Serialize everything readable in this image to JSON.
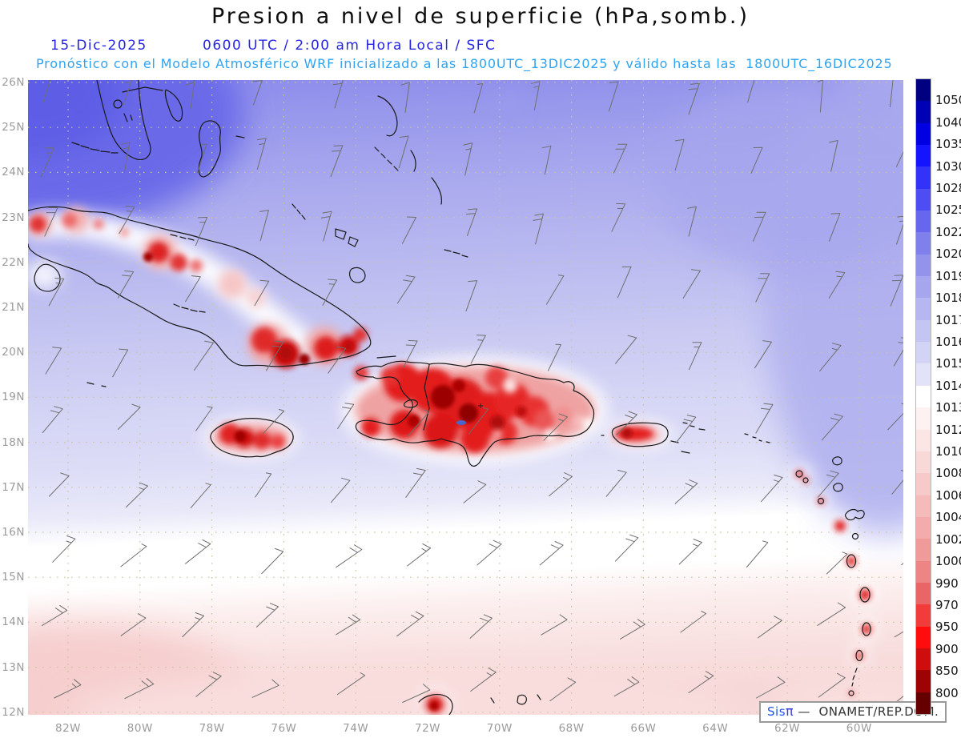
{
  "title": "Presion a nivel de superficie (hPa,somb.)",
  "header": {
    "date": "15-Dic-2025",
    "time_line": "0600 UTC / 2:00 am Hora Local / SFC",
    "forecast_line": "Pronóstico con el Modelo Atmosférico WRF inicializado a las 1800UTC_13DIC2025 y válido hasta las  1800UTC_16DIC2025"
  },
  "map": {
    "lat_labels": [
      "26N",
      "25N",
      "24N",
      "23N",
      "22N",
      "21N",
      "20N",
      "19N",
      "18N",
      "17N",
      "16N",
      "15N",
      "14N",
      "13N",
      "12N"
    ],
    "lon_labels": [
      "82W",
      "80W",
      "78W",
      "76W",
      "74W",
      "72W",
      "70W",
      "68W",
      "66W",
      "64W",
      "62W",
      "60W"
    ]
  },
  "colorbar": {
    "unit": "hPa",
    "tick_labels": [
      "1050",
      "1040",
      "1035",
      "1030",
      "1028",
      "1025",
      "1022",
      "1020",
      "1019",
      "1018",
      "1017",
      "1016",
      "1015",
      "1014",
      "1013",
      "1012",
      "1010",
      "1008",
      "1006",
      "1004",
      "1002",
      "1000",
      "990",
      "970",
      "950",
      "900",
      "850",
      "800"
    ],
    "colors": [
      "#000080",
      "#0000b4",
      "#0000e2",
      "#1414ff",
      "#3232f8",
      "#4d4df3",
      "#6666ef",
      "#8080ec",
      "#9393ec",
      "#a6a6ee",
      "#b6b6f0",
      "#c5c5f3",
      "#d3d3f5",
      "#e2e2f8",
      "#ffffff",
      "#fdf1f1",
      "#fbe5e5",
      "#f9d8d8",
      "#f7c9c9",
      "#f5baba",
      "#f3abab",
      "#f19a9a",
      "#ee8484",
      "#ea6666",
      "#f23c3c",
      "#ff0d0d",
      "#cf0d0d",
      "#9e0202",
      "#660000"
    ]
  },
  "watermark": {
    "system": "Sis",
    "pi": "π",
    "org": " —  ONAMET/REP.DOM."
  },
  "palette": {
    "title_color": "#0d0d0d",
    "date_color": "#2626e0",
    "forecast_color": "#2ea4f2",
    "axis_label_color": "#9a9a9a",
    "wind_barb_color": "#6f6f6f",
    "grid_color": "#c9c49f"
  }
}
